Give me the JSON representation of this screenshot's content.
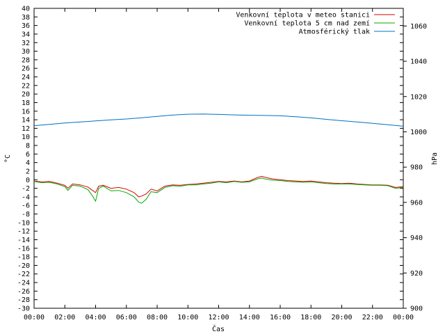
{
  "chart_data": {
    "type": "line",
    "xlabel": "Čas",
    "ylabel_left": "°C",
    "ylabel_right": "hPa",
    "x_ticks": [
      "00:00",
      "02:00",
      "04:00",
      "06:00",
      "08:00",
      "10:00",
      "12:00",
      "14:00",
      "16:00",
      "18:00",
      "20:00",
      "22:00",
      "00:00"
    ],
    "x_unit": "hours since midnight",
    "x_range": [
      0,
      24
    ],
    "y_left_range": [
      -30,
      40
    ],
    "y_left_ticks": [
      -30,
      -28,
      -26,
      -24,
      -22,
      -20,
      -18,
      -16,
      -14,
      -12,
      -10,
      -8,
      -6,
      -4,
      -2,
      0,
      2,
      4,
      6,
      8,
      10,
      12,
      14,
      16,
      18,
      20,
      22,
      24,
      26,
      28,
      30,
      32,
      34,
      36,
      38,
      40
    ],
    "y_right_range": [
      900,
      1070
    ],
    "y_right_ticks": [
      900,
      920,
      940,
      960,
      980,
      1000,
      1020,
      1040,
      1060
    ],
    "grid": false,
    "legend_position": "top-right",
    "series": [
      {
        "name": "Venkovní teplota v meteo stanici",
        "color": "#dd0000",
        "axis": "left",
        "x": [
          0,
          0.5,
          1,
          1.5,
          2,
          2.2,
          2.5,
          3,
          3.5,
          3.8,
          4,
          4.2,
          4.5,
          5,
          5.5,
          6,
          6.5,
          6.8,
          7,
          7.3,
          7.6,
          8,
          8.5,
          9,
          9.5,
          10,
          10.5,
          11,
          11.5,
          12,
          12.5,
          13,
          13.5,
          14,
          14.5,
          14.8,
          15,
          15.5,
          16,
          16.5,
          17,
          17.5,
          18,
          18.5,
          19,
          19.5,
          20,
          20.5,
          21,
          21.5,
          22,
          22.5,
          23,
          23.5,
          24
        ],
        "values": [
          -0.3,
          -0.5,
          -0.4,
          -0.8,
          -1.3,
          -2.0,
          -1.0,
          -1.2,
          -1.7,
          -2.5,
          -3.0,
          -1.5,
          -1.3,
          -2.0,
          -1.8,
          -2.2,
          -3.0,
          -4.0,
          -3.8,
          -3.3,
          -2.2,
          -2.6,
          -1.5,
          -1.2,
          -1.3,
          -1.1,
          -1.0,
          -0.8,
          -0.6,
          -0.4,
          -0.5,
          -0.3,
          -0.5,
          -0.3,
          0.5,
          0.8,
          0.6,
          0.2,
          0.0,
          -0.2,
          -0.3,
          -0.4,
          -0.3,
          -0.5,
          -0.7,
          -0.8,
          -0.9,
          -0.8,
          -1.0,
          -1.1,
          -1.2,
          -1.2,
          -1.3,
          -1.8,
          -1.6
        ]
      },
      {
        "name": "Venkovní teplota 5 cm nad zemí",
        "color": "#00aa00",
        "axis": "left",
        "x": [
          0,
          0.5,
          1,
          1.5,
          2,
          2.2,
          2.5,
          3,
          3.5,
          3.8,
          4,
          4.2,
          4.5,
          5,
          5.5,
          6,
          6.5,
          6.8,
          7,
          7.3,
          7.6,
          8,
          8.5,
          9,
          9.5,
          10,
          10.5,
          11,
          11.5,
          12,
          12.5,
          13,
          13.5,
          14,
          14.5,
          14.8,
          15,
          15.5,
          16,
          16.5,
          17,
          17.5,
          18,
          18.5,
          19,
          19.5,
          20,
          20.5,
          21,
          21.5,
          22,
          22.5,
          23,
          23.5,
          24
        ],
        "values": [
          -0.4,
          -0.7,
          -0.6,
          -1.0,
          -1.6,
          -2.5,
          -1.3,
          -1.5,
          -2.3,
          -3.8,
          -5.0,
          -2.0,
          -1.5,
          -2.6,
          -2.5,
          -3.0,
          -4.0,
          -5.2,
          -5.5,
          -4.5,
          -2.8,
          -3.0,
          -1.8,
          -1.4,
          -1.5,
          -1.2,
          -1.2,
          -1.0,
          -0.8,
          -0.5,
          -0.7,
          -0.4,
          -0.6,
          -0.5,
          0.2,
          0.4,
          0.2,
          -0.1,
          -0.2,
          -0.4,
          -0.5,
          -0.6,
          -0.5,
          -0.7,
          -0.9,
          -1.0,
          -1.0,
          -1.0,
          -1.1,
          -1.2,
          -1.3,
          -1.3,
          -1.4,
          -2.0,
          -1.8
        ]
      },
      {
        "name": "Atmosférický tlak",
        "color": "#0070c0",
        "axis": "right",
        "x": [
          0,
          1,
          2,
          3,
          4,
          5,
          6,
          7,
          8,
          9,
          10,
          11,
          12,
          13,
          14,
          15,
          16,
          17,
          18,
          19,
          20,
          21,
          22,
          23,
          24
        ],
        "values": [
          1003.5,
          1004.2,
          1005.0,
          1005.6,
          1006.2,
          1006.8,
          1007.3,
          1008.0,
          1008.8,
          1009.5,
          1010.0,
          1010.1,
          1009.9,
          1009.6,
          1009.4,
          1009.3,
          1009.1,
          1008.6,
          1007.9,
          1007.1,
          1006.3,
          1005.6,
          1004.8,
          1004.0,
          1003.2
        ]
      }
    ]
  }
}
